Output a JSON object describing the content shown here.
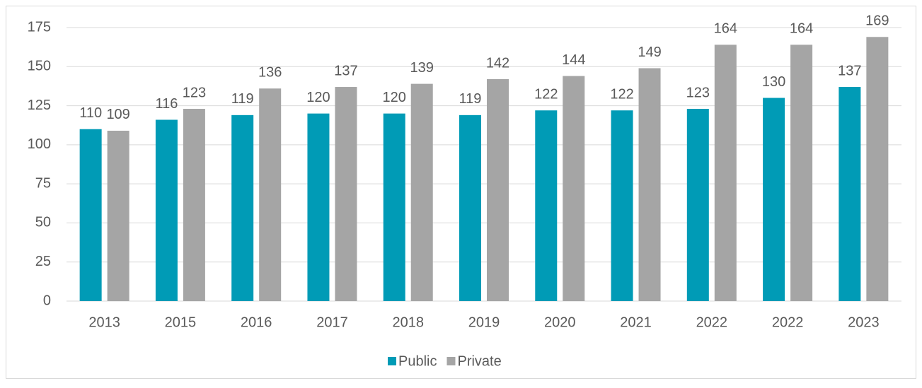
{
  "chart_data": {
    "type": "bar",
    "categories": [
      "2013",
      "2015",
      "2016",
      "2017",
      "2018",
      "2019",
      "2020",
      "2021",
      "2022",
      "2022",
      "2023"
    ],
    "series": [
      {
        "name": "Public",
        "color": "#009bb6",
        "values": [
          110,
          116,
          119,
          120,
          120,
          119,
          122,
          122,
          123,
          130,
          137
        ]
      },
      {
        "name": "Private",
        "color": "#a5a5a5",
        "values": [
          109,
          123,
          136,
          137,
          139,
          142,
          144,
          149,
          164,
          164,
          169
        ]
      }
    ],
    "ylim": [
      0,
      175
    ],
    "yticks": [
      0,
      25,
      50,
      75,
      100,
      125,
      150,
      175
    ],
    "grid": true,
    "legend": "bottom"
  }
}
